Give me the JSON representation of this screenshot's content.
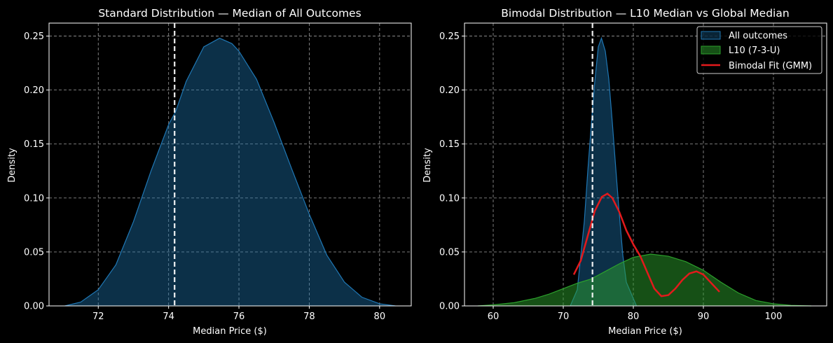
{
  "chart_data": [
    {
      "type": "area",
      "title": "Standard Distribution — Median of All Outcomes",
      "xlabel": "Median Price ($)",
      "ylabel": "Density",
      "xlim": [
        70.6,
        80.9
      ],
      "ylim": [
        0,
        0.262
      ],
      "xticks": [
        72,
        74,
        76,
        78,
        80
      ],
      "xtick_labels": [
        "72",
        "74",
        "76",
        "78",
        "80"
      ],
      "yticks": [
        0.0,
        0.05,
        0.1,
        0.15,
        0.2,
        0.25
      ],
      "ytick_labels": [
        "0.00",
        "0.05",
        "0.10",
        "0.15",
        "0.20",
        "0.25"
      ],
      "grid": true,
      "series": [
        {
          "name": "All outcomes",
          "color": "#1f77b4",
          "x": [
            71.05,
            71.5,
            72.0,
            72.5,
            73.0,
            73.5,
            74.0,
            74.2,
            74.5,
            75.0,
            75.45,
            75.8,
            76.0,
            76.5,
            77.0,
            77.5,
            78.0,
            78.5,
            79.0,
            79.5,
            80.0,
            80.45
          ],
          "y": [
            0.0,
            0.0035,
            0.015,
            0.038,
            0.078,
            0.125,
            0.168,
            0.18,
            0.208,
            0.24,
            0.248,
            0.243,
            0.236,
            0.21,
            0.17,
            0.127,
            0.085,
            0.047,
            0.022,
            0.008,
            0.002,
            0.0
          ]
        }
      ],
      "vline": {
        "x": 74.17,
        "label": "Global median",
        "color": "#ffffff"
      }
    },
    {
      "type": "area",
      "title": "Bimodal Distribution — L10 Median vs Global Median",
      "xlabel": "Median Price ($)",
      "ylabel": "Density",
      "xlim": [
        55.9,
        107.6
      ],
      "ylim": [
        0,
        0.262
      ],
      "xticks": [
        60,
        70,
        80,
        90,
        100
      ],
      "xtick_labels": [
        "60",
        "70",
        "80",
        "90",
        "100"
      ],
      "yticks": [
        0.0,
        0.05,
        0.1,
        0.15,
        0.2,
        0.25
      ],
      "ytick_labels": [
        "0.00",
        "0.05",
        "0.10",
        "0.15",
        "0.20",
        "0.25"
      ],
      "grid": true,
      "legend": {
        "position": "top-right",
        "entries": [
          "All outcomes",
          "L10 (7-3-U)",
          "Bimodal Fit (GMM)"
        ]
      },
      "series": [
        {
          "name": "All outcomes",
          "color": "#1f77b4",
          "x": [
            71.0,
            72.0,
            73.0,
            73.5,
            74.0,
            74.5,
            75.0,
            75.45,
            76.0,
            76.5,
            77.0,
            77.5,
            78.0,
            78.5,
            79.0,
            80.45
          ],
          "y": [
            0.0,
            0.015,
            0.078,
            0.125,
            0.168,
            0.208,
            0.24,
            0.248,
            0.236,
            0.21,
            0.17,
            0.127,
            0.085,
            0.047,
            0.022,
            0.0
          ]
        },
        {
          "name": "L10 (7-3-U)",
          "color": "#2ca02c",
          "x": [
            57.8,
            60.0,
            63.0,
            66.0,
            68.0,
            70.0,
            72.0,
            74.0,
            76.0,
            78.0,
            80.0,
            82.5,
            85.0,
            87.5,
            90.0,
            92.5,
            95.0,
            97.5,
            100.0,
            102.5,
            105.4
          ],
          "y": [
            0.0,
            0.001,
            0.003,
            0.007,
            0.011,
            0.016,
            0.021,
            0.025,
            0.032,
            0.039,
            0.045,
            0.048,
            0.046,
            0.041,
            0.033,
            0.022,
            0.012,
            0.005,
            0.002,
            0.0005,
            0.0
          ]
        },
        {
          "name": "Bimodal Fit (GMM)",
          "color": "#e31a1c",
          "x": [
            71.5,
            72.5,
            73.5,
            74.5,
            75.5,
            76.3,
            77.0,
            78.0,
            79.0,
            80.0,
            81.0,
            82.0,
            83.0,
            84.0,
            85.0,
            86.0,
            87.0,
            88.0,
            89.0,
            90.0,
            91.0,
            92.3
          ],
          "y": [
            0.029,
            0.042,
            0.065,
            0.088,
            0.101,
            0.104,
            0.1,
            0.087,
            0.07,
            0.057,
            0.046,
            0.031,
            0.016,
            0.009,
            0.01,
            0.016,
            0.024,
            0.03,
            0.032,
            0.029,
            0.022,
            0.013
          ]
        }
      ],
      "vline": {
        "x": 74.17,
        "label": "Global median",
        "color": "#ffffff"
      }
    }
  ]
}
